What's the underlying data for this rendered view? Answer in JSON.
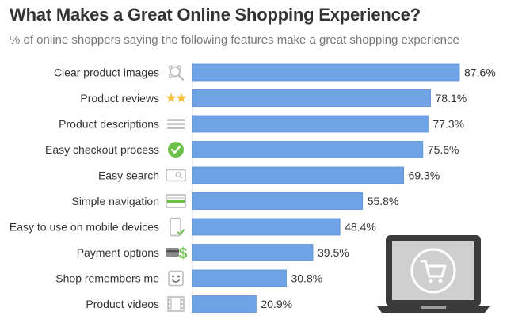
{
  "header": {
    "title": "What Makes a Great Online Shopping Experience?",
    "subtitle": "% of online shoppers saying the following features make a great shopping experience"
  },
  "colors": {
    "bar": "#6fa3e6",
    "bar_stroke": "#5b8fd4",
    "icon_gray": "#bdbdbd",
    "icon_green": "#6cc04a",
    "star": "#f5c242",
    "laptop_dark": "#3a3a3a",
    "laptop_screen": "#cfcfcf"
  },
  "chart_data": {
    "type": "bar",
    "orientation": "horizontal",
    "title": "What Makes a Great Online Shopping Experience?",
    "subtitle": "% of online shoppers saying the following features make a great shopping experience",
    "categories": [
      "Clear product images",
      "Product reviews",
      "Product descriptions",
      "Easy checkout process",
      "Easy search",
      "Simple navigation",
      "Easy to use on mobile devices",
      "Payment options",
      "Shop remembers me",
      "Product videos"
    ],
    "values": [
      87.6,
      78.1,
      77.3,
      75.6,
      69.3,
      55.8,
      48.4,
      39.5,
      30.8,
      20.9
    ],
    "value_labels": [
      "87.6%",
      "78.1%",
      "77.3%",
      "75.6%",
      "69.3%",
      "55.8%",
      "48.4%",
      "39.5%",
      "30.8%",
      "20.9%"
    ],
    "icons": [
      "magnifier-image-icon",
      "stars-icon",
      "lines-icon",
      "checkmark-icon",
      "search-box-icon",
      "navigation-icon",
      "mobile-device-icon",
      "payment-icon",
      "smiley-icon",
      "film-icon"
    ],
    "xlim": [
      0,
      100
    ],
    "grid": false,
    "legend": "none",
    "xlabel": "",
    "ylabel": ""
  }
}
